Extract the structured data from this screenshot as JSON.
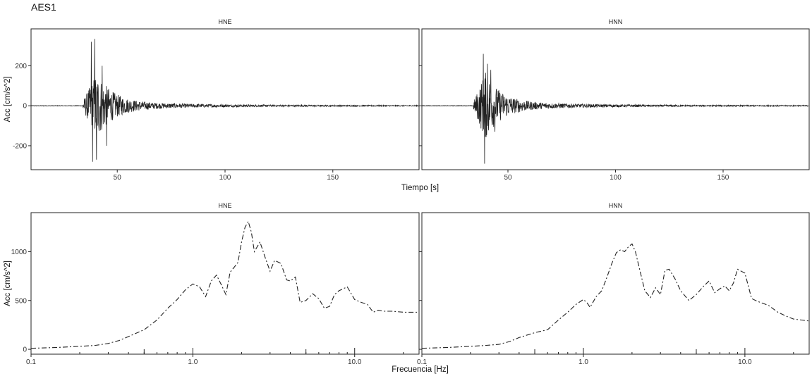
{
  "figure": {
    "title": "AES1"
  },
  "chart_data": [
    {
      "type": "line",
      "panels": [
        "HNE",
        "HNN"
      ],
      "xlabel": "Tiempo [s]",
      "ylabel": "Acc [cm/s^2]",
      "xlim": [
        10,
        190
      ],
      "ylim": [
        -320,
        385
      ],
      "x_ticks": [
        50,
        100,
        150
      ],
      "y_ticks": [
        -200,
        0,
        200
      ],
      "x_tick_labels": [
        "50",
        "100",
        "150"
      ],
      "y_tick_labels": [
        "-200",
        "0",
        "200"
      ],
      "series": [
        {
          "panel": "HNE",
          "onset_s": 34,
          "peak_s": 40,
          "peaks": [
            [
              38,
              320
            ],
            [
              38.6,
              -280
            ],
            [
              39.5,
              335
            ],
            [
              40.3,
              -270
            ],
            [
              43,
              200
            ],
            [
              45,
              -200
            ]
          ]
        },
        {
          "panel": "HNN",
          "onset_s": 34,
          "peak_s": 39,
          "peaks": [
            [
              38.5,
              260
            ],
            [
              39.2,
              -290
            ],
            [
              40.5,
              210
            ],
            [
              42,
              180
            ],
            [
              44,
              -130
            ]
          ]
        }
      ]
    },
    {
      "type": "line",
      "panels": [
        "HNE",
        "HNN"
      ],
      "xlabel": "Frecuencia [Hz]",
      "ylabel": "Acc [cm/s^2]",
      "xscale": "log",
      "xlim": [
        0.1,
        25
      ],
      "ylim": [
        -50,
        1400
      ],
      "x_ticks": [
        0.1,
        1.0,
        10.0
      ],
      "x_tick_labels": [
        "0.1",
        "1.0",
        "10.0"
      ],
      "y_ticks": [
        0,
        500,
        1000
      ],
      "y_tick_labels": [
        "0",
        "500",
        "1000"
      ],
      "series": [
        {
          "panel": "HNE",
          "x": [
            0.1,
            0.15,
            0.2,
            0.25,
            0.3,
            0.35,
            0.4,
            0.5,
            0.6,
            0.7,
            0.8,
            0.9,
            1.0,
            1.1,
            1.2,
            1.3,
            1.4,
            1.5,
            1.6,
            1.7,
            1.8,
            1.9,
            2.0,
            2.1,
            2.2,
            2.3,
            2.4,
            2.6,
            2.8,
            3.0,
            3.2,
            3.5,
            3.8,
            4.0,
            4.3,
            4.6,
            5.0,
            5.5,
            6.0,
            6.5,
            7.0,
            7.5,
            8.0,
            9.0,
            10.0,
            11.0,
            12.0,
            13.0,
            14.0,
            15.0,
            17.0,
            20.0,
            25.0
          ],
          "y": [
            10,
            20,
            30,
            40,
            60,
            90,
            130,
            200,
            300,
            420,
            510,
            610,
            670,
            640,
            540,
            700,
            760,
            660,
            560,
            790,
            840,
            890,
            1100,
            1250,
            1310,
            1200,
            1000,
            1100,
            940,
            800,
            910,
            880,
            710,
            700,
            740,
            480,
            500,
            570,
            520,
            420,
            440,
            560,
            600,
            640,
            510,
            480,
            460,
            380,
            400,
            390,
            390,
            380,
            380
          ]
        },
        {
          "panel": "HNN",
          "x": [
            0.1,
            0.15,
            0.2,
            0.25,
            0.3,
            0.35,
            0.4,
            0.5,
            0.6,
            0.7,
            0.8,
            0.9,
            1.0,
            1.05,
            1.1,
            1.2,
            1.3,
            1.4,
            1.5,
            1.6,
            1.7,
            1.8,
            1.9,
            2.0,
            2.1,
            2.2,
            2.4,
            2.6,
            2.8,
            3.0,
            3.2,
            3.4,
            3.7,
            4.0,
            4.5,
            5.0,
            5.5,
            6.0,
            6.5,
            7.0,
            7.5,
            8.0,
            8.5,
            9.0,
            10.0,
            11.0,
            12.0,
            14.0,
            16.0,
            18.0,
            20.0,
            25.0
          ],
          "y": [
            10,
            20,
            30,
            40,
            50,
            80,
            120,
            170,
            200,
            300,
            380,
            460,
            510,
            480,
            430,
            540,
            600,
            740,
            880,
            990,
            1020,
            1000,
            1050,
            1080,
            1000,
            860,
            600,
            530,
            630,
            560,
            810,
            820,
            720,
            600,
            500,
            560,
            640,
            700,
            580,
            620,
            650,
            600,
            680,
            820,
            780,
            520,
            490,
            450,
            380,
            340,
            310,
            290
          ]
        }
      ]
    }
  ]
}
